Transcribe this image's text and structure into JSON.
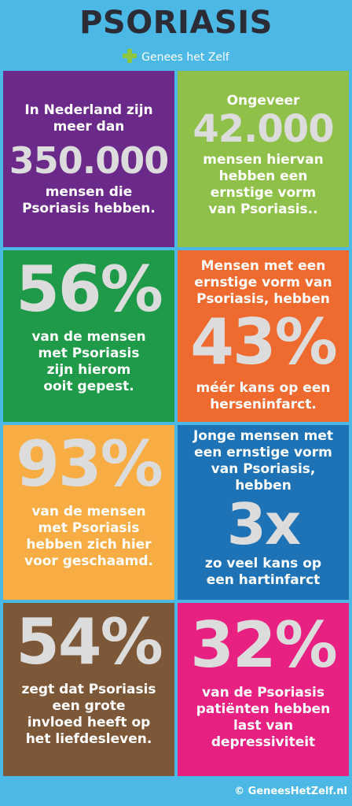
{
  "header": {
    "title": "PSORIASIS",
    "subtitle": "Genees het Zelf"
  },
  "tiles": [
    {
      "lines": [
        "In Nederland zijn",
        "meer dan"
      ],
      "big": "350.000",
      "after": [
        "mensen die",
        "Psoriasis hebben."
      ],
      "color": "#6b2a8a"
    },
    {
      "lines": [
        "Ongeveer"
      ],
      "big": "42.000",
      "after": [
        "mensen hiervan",
        "hebben een",
        "ernstige vorm",
        "van Psoriasis.."
      ],
      "color": "#8fc14a"
    },
    {
      "lines": [],
      "big": "56%",
      "after": [
        "van de mensen",
        "met Psoriasis",
        "zijn hierom",
        "ooit gepest."
      ],
      "color": "#1f9a49"
    },
    {
      "lines": [
        "Mensen met een",
        "ernstige vorm van",
        "Psoriasis, hebben"
      ],
      "big": "43%",
      "after": [
        "méér kans op een",
        "herseninfarct."
      ],
      "color": "#ee6a2f"
    },
    {
      "lines": [],
      "big": "93%",
      "after": [
        "van de mensen",
        "met Psoriasis",
        "hebben zich hier",
        "voor geschaamd."
      ],
      "color": "#f8ad44"
    },
    {
      "lines": [
        "Jonge mensen met",
        "een ernstige vorm",
        "van Psoriasis,",
        "hebben"
      ],
      "big": "3x",
      "after": [
        "zo veel kans op",
        "een hartinfarct"
      ],
      "color": "#1e73b6"
    },
    {
      "lines": [],
      "big": "54%",
      "after": [
        "zegt dat Psoriasis",
        "een grote",
        "invloed heeft op",
        "het liefdesleven."
      ],
      "color": "#7d5838"
    },
    {
      "lines": [],
      "big": "32%",
      "after": [
        "van de Psoriasis",
        "patiënten hebben",
        "last van",
        "depressiviteit"
      ],
      "color": "#e82081"
    }
  ],
  "footer": {
    "copyright": "© GeneesHetZelf.nl"
  },
  "colors": {
    "background": "#4bb8e6",
    "title": "#2c2c36",
    "plus": "#8dc63f",
    "big_number": "#dcdcdc"
  }
}
